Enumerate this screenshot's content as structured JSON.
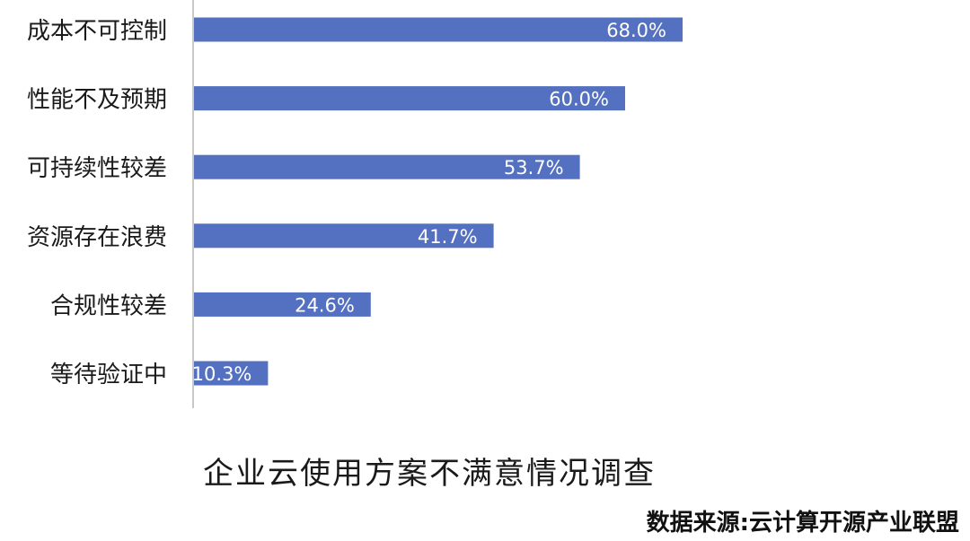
{
  "chart_data": {
    "type": "bar",
    "orientation": "horizontal",
    "title": "企业云使用方案不满意情况调查",
    "categories": [
      "成本不可控制",
      "性能不及预期",
      "可持续性较差",
      "资源存在浪费",
      "合规性较差",
      "等待验证中"
    ],
    "values": [
      68.0,
      60.0,
      53.7,
      41.7,
      24.6,
      10.3
    ],
    "data_labels": [
      "68.0%",
      "60.0%",
      "53.7%",
      "41.7%",
      "24.6%",
      "10.3%"
    ],
    "unit": "%",
    "xlim": [
      0,
      100
    ],
    "grid": false,
    "bar_color": "#5470c0"
  },
  "source": "数据来源:云计算开源产业联盟"
}
